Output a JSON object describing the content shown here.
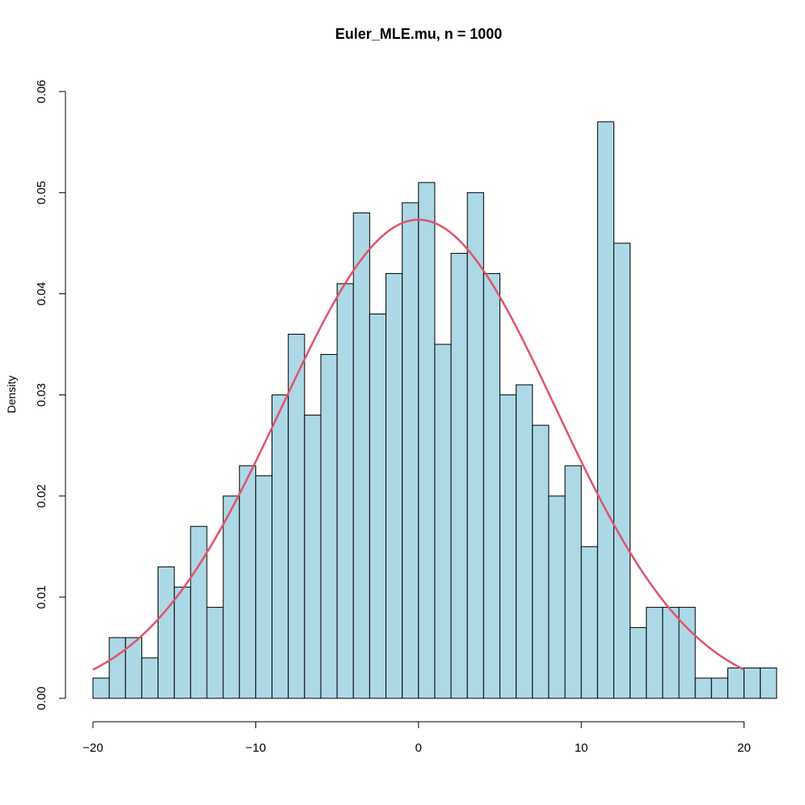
{
  "chart_data": {
    "type": "bar",
    "title": "Euler_MLE.mu, n = 1000",
    "xlabel": "",
    "ylabel": "Density",
    "bin_start": -20,
    "bin_width": 1,
    "values": [
      0.002,
      0.006,
      0.006,
      0.004,
      0.013,
      0.011,
      0.017,
      0.009,
      0.02,
      0.023,
      0.022,
      0.03,
      0.036,
      0.028,
      0.034,
      0.041,
      0.048,
      0.038,
      0.042,
      0.049,
      0.051,
      0.035,
      0.044,
      0.05,
      0.042,
      0.03,
      0.031,
      0.027,
      0.02,
      0.023,
      0.015,
      0.057,
      0.045,
      0.007,
      0.009,
      0.009,
      0.009,
      0.002,
      0.002,
      0.003,
      0.003,
      0.003
    ],
    "xlim": [
      -20,
      21.7
    ],
    "ylim": [
      0,
      0.06
    ],
    "x_ticks": [
      "−20",
      "−10",
      "0",
      "10",
      "20"
    ],
    "x_tick_values": [
      -20,
      -10,
      0,
      10,
      20
    ],
    "y_ticks": [
      "0.00",
      "0.01",
      "0.02",
      "0.03",
      "0.04",
      "0.05",
      "0.06"
    ],
    "y_tick_values": [
      0,
      0.01,
      0.02,
      0.03,
      0.04,
      0.05,
      0.06
    ],
    "overlay_curve": {
      "type": "normal-density",
      "mean": 0,
      "sd": 8.43,
      "x_range": [
        -20,
        20
      ]
    },
    "bar_color": "#add8e6",
    "curve_color": "#df536b",
    "grid": false,
    "legend": "none"
  }
}
